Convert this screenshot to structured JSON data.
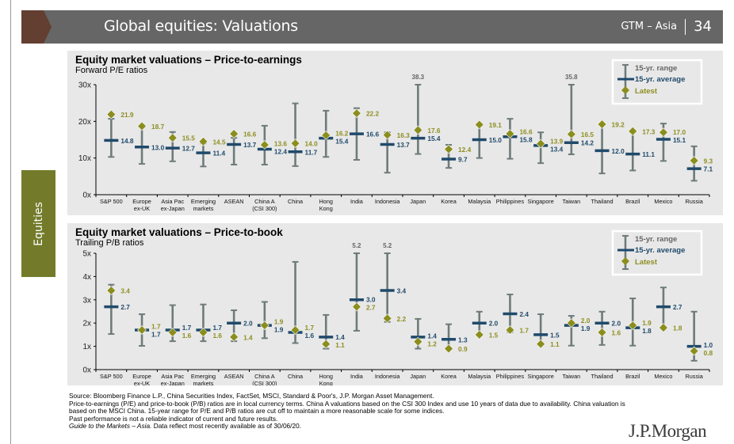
{
  "header": {
    "title": "Global equities: Valuations",
    "series_label": "GTM – Asia",
    "page_number": "34"
  },
  "side_tab": {
    "label": "Equities"
  },
  "colors": {
    "header_bg": "#666666",
    "header_accent": "#633f31",
    "side_tab": "#737b2a",
    "panel_bg": "#e8e8e8",
    "range": "#6f7b7b",
    "average": "#1f4a6b",
    "latest": "#8b8e1e"
  },
  "legend": {
    "range": "15-yr. range",
    "average": "15-yr. average",
    "latest": "Latest"
  },
  "chart_data": [
    {
      "type": "range-dot",
      "title": "Equity market valuations – Price-to-earnings",
      "subtitle": "Forward P/E ratios",
      "ylim": [
        0,
        30
      ],
      "yticks": [
        "0x",
        "10x",
        "20x",
        "30x"
      ],
      "legend_position": "top-right",
      "categories": [
        "S&P 500",
        "Europe\nex-UK",
        "Asia Pac\nex-Japan",
        "Emerging\nmarkets",
        "ASEAN",
        "China A\n(CSI 300)",
        "China",
        "Hong\nKong",
        "India",
        "Indonesia",
        "Japan",
        "Korea",
        "Malaysia",
        "Philippines",
        "Singapore",
        "Taiwan",
        "Thailand",
        "Brazil",
        "Mexico",
        "Russia"
      ],
      "range_min": [
        10.3,
        8.4,
        9.1,
        7.7,
        8.2,
        8.2,
        7.8,
        10.3,
        9.5,
        6.0,
        11.1,
        7.3,
        10.0,
        9.8,
        8.6,
        11.0,
        5.8,
        6.6,
        9.2,
        3.8
      ],
      "range_max": [
        20.7,
        18.4,
        17.1,
        14.0,
        15.5,
        18.8,
        24.9,
        22.9,
        23.6,
        17.0,
        38.3,
        13.6,
        18.8,
        20.7,
        17.0,
        35.8,
        19.1,
        17.0,
        19.4,
        13.2
      ],
      "range_max_labels": [
        "",
        "",
        "",
        "",
        "",
        "",
        "",
        "",
        "",
        "",
        "38.3",
        "",
        "",
        "",
        "",
        "35.8",
        "",
        "",
        "",
        ""
      ],
      "average": [
        14.8,
        13.0,
        12.7,
        11.4,
        13.7,
        12.4,
        11.7,
        15.4,
        16.6,
        13.7,
        15.4,
        9.7,
        15.0,
        15.8,
        13.4,
        14.2,
        12.0,
        11.1,
        15.1,
        7.1
      ],
      "latest": [
        21.9,
        18.7,
        15.5,
        14.5,
        16.6,
        13.6,
        14.0,
        16.2,
        22.2,
        16.3,
        17.6,
        12.4,
        19.1,
        16.6,
        13.9,
        16.5,
        19.2,
        17.3,
        17.0,
        9.3
      ]
    },
    {
      "type": "range-dot",
      "title": "Equity market valuations – Price-to-book",
      "subtitle": "Trailing P/B ratios",
      "ylim": [
        0,
        5
      ],
      "yticks": [
        "0x",
        "1x",
        "2x",
        "3x",
        "4x",
        "5x"
      ],
      "legend_position": "top-right",
      "categories": [
        "S&P 500",
        "Europe\nex-UK",
        "Asia Pac\nex-Japan",
        "Emerging\nmarkets",
        "ASEAN",
        "China A\n(CSI 300)",
        "China",
        "Hong\nKong",
        "India",
        "Indonesia",
        "Japan",
        "Korea",
        "Malaysia",
        "Philippines",
        "Singapore",
        "Taiwan",
        "Thailand",
        "Brazil",
        "Mexico",
        "Russia"
      ],
      "range_min": [
        1.53,
        1.02,
        1.22,
        1.22,
        1.22,
        1.35,
        1.14,
        0.9,
        1.67,
        2.05,
        0.9,
        0.94,
        1.5,
        1.61,
        1.1,
        1.03,
        1.06,
        1.03,
        1.78,
        0.38
      ],
      "range_max": [
        3.65,
        2.38,
        2.77,
        2.8,
        2.55,
        2.91,
        4.63,
        2.35,
        5.2,
        5.2,
        2.18,
        1.95,
        2.49,
        3.23,
        2.38,
        2.31,
        2.49,
        3.06,
        3.53,
        2.49
      ],
      "range_max_labels": [
        "",
        "",
        "",
        "",
        "",
        "",
        "",
        "",
        "5.2",
        "5.2",
        "",
        "",
        "",
        "",
        "",
        "",
        "",
        "",
        "",
        ""
      ],
      "average": [
        2.7,
        1.7,
        1.7,
        1.7,
        2.0,
        1.9,
        1.6,
        1.4,
        3.0,
        3.4,
        1.4,
        1.3,
        2.0,
        2.4,
        1.5,
        1.9,
        2.0,
        1.8,
        2.7,
        1.0
      ],
      "latest": [
        3.4,
        1.7,
        1.6,
        1.6,
        1.4,
        1.9,
        1.7,
        1.1,
        2.7,
        2.2,
        1.2,
        0.9,
        1.5,
        1.7,
        1.1,
        2.0,
        1.6,
        1.9,
        1.8,
        0.8
      ]
    }
  ],
  "footnotes": {
    "source": "Source: Bloomberg Finance L.P., China Securities Index, FactSet, MSCI, Standard & Poor's, J.P. Morgan Asset Management.",
    "note": "Price-to-earnings (P/E) and price-to-book (P/B) ratios are in local currency terms. China A valuations based on the CSI 300 Index and use 10 years of data due to availability. China valuation is based on the MSCI China. 15-year range for P/E and P/B ratios are cut off to maintain a more reasonable scale for some indices.",
    "disclaimer": "Past performance is not a reliable indicator of current and future results.",
    "guide": "Guide to the Markets – Asia.",
    "data_date": " Data reflect most recently available as of 30/06/20."
  },
  "logo": {
    "text": "J.P.Morgan"
  }
}
